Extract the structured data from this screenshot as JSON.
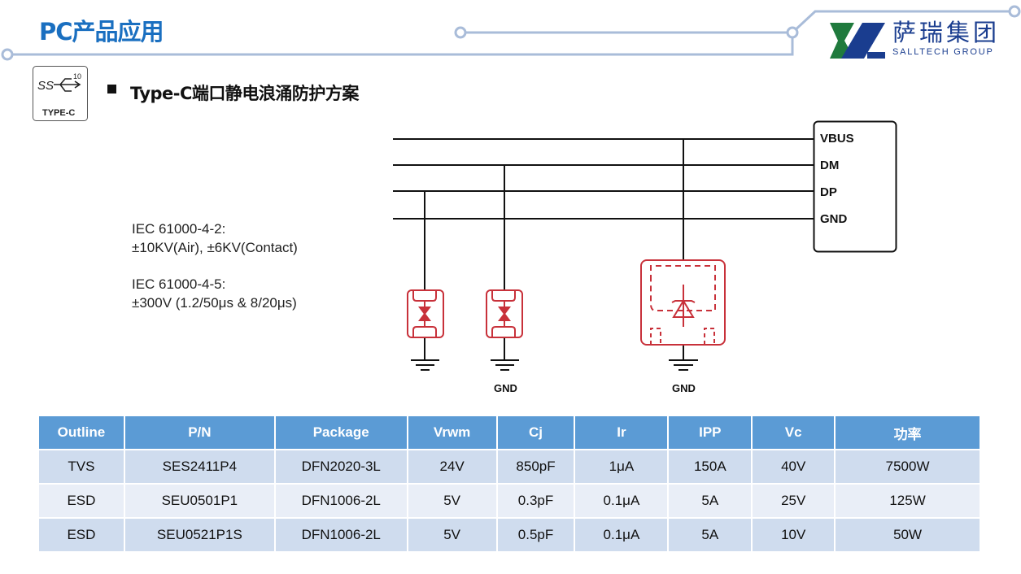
{
  "header": {
    "title": "PC产品应用",
    "logo_cn": "萨瑞集团",
    "logo_en": "SALLTECH GROUP"
  },
  "section": {
    "icon_text": "TYPE-C",
    "icon_number": "10",
    "icon_ss": "SS",
    "subtitle": "Type-C端口静电浪涌防护方案"
  },
  "specs": [
    {
      "line1": "IEC 61000-4-2:",
      "line2": "±10KV(Air), ±6KV(Contact)"
    },
    {
      "line1": "IEC 61000-4-5:",
      "line2": "±300V  (1.2/50μs & 8/20μs)"
    }
  ],
  "diagram": {
    "pins": [
      "VBUS",
      "DM",
      "DP",
      "GND"
    ],
    "gnd_label": "GND",
    "component_color": "#c8313a"
  },
  "table": {
    "headers": [
      "Outline",
      "P/N",
      "Package",
      "Vrwm",
      "Cj",
      "Ir",
      "IPP",
      "Vc",
      "功率"
    ],
    "rows": [
      [
        "TVS",
        "SES2411P4",
        "DFN2020-3L",
        "24V",
        "850pF",
        "1μA",
        "150A",
        "40V",
        "7500W"
      ],
      [
        "ESD",
        "SEU0501P1",
        "DFN1006-2L",
        "5V",
        "0.3pF",
        "0.1μA",
        "5A",
        "25V",
        "125W"
      ],
      [
        "ESD",
        "SEU0521P1S",
        "DFN1006-2L",
        "5V",
        "0.5pF",
        "0.1μA",
        "5A",
        "10V",
        "50W"
      ]
    ]
  },
  "colors": {
    "accent": "#1a6fc0",
    "header_bg": "#5b9bd5",
    "deco_line": "#a9bcd9"
  }
}
